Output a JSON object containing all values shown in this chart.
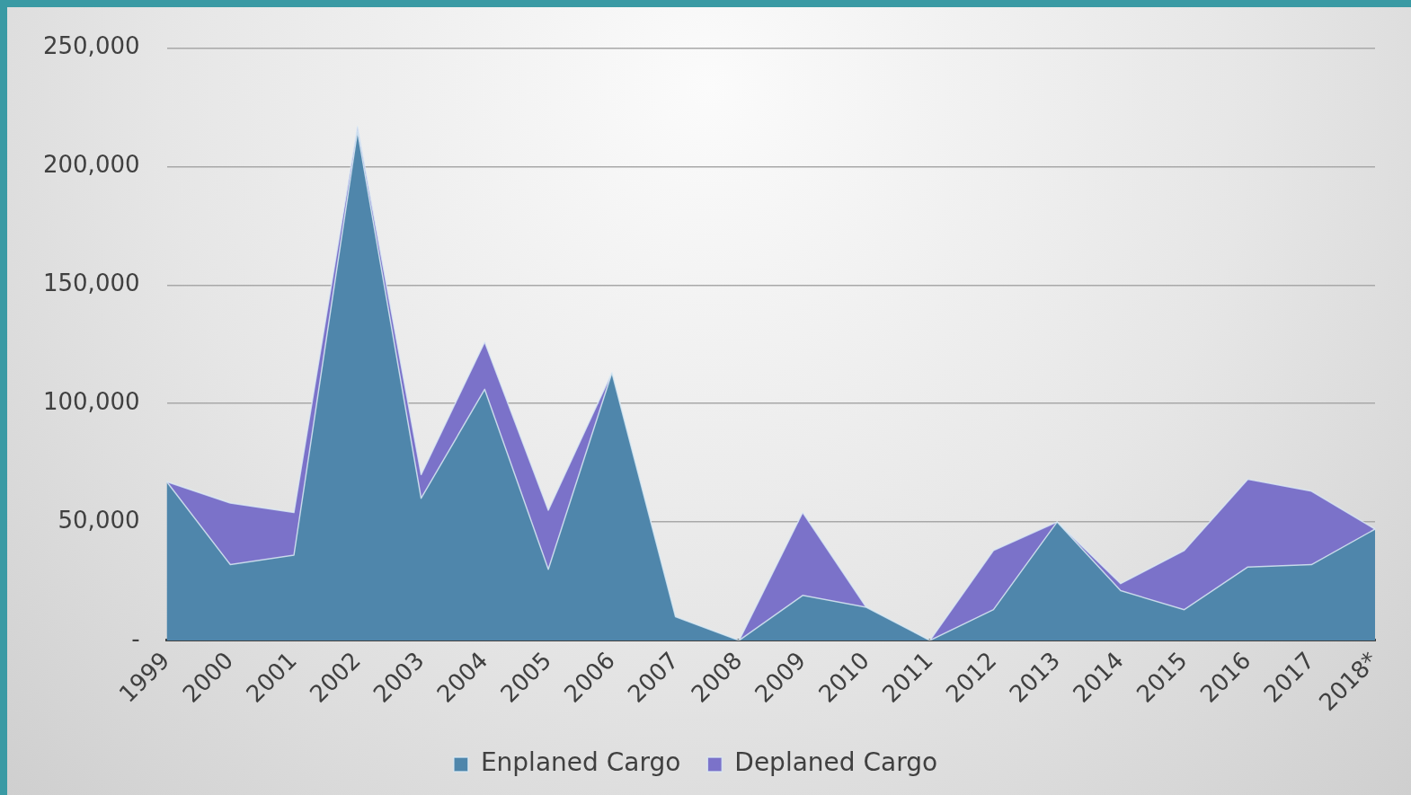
{
  "chart_data": {
    "type": "area",
    "stacked": true,
    "categories": [
      "1999",
      "2000",
      "2001",
      "2002",
      "2003",
      "2004",
      "2005",
      "2006",
      "2007",
      "2008",
      "2009",
      "2010",
      "2011",
      "2012",
      "2013",
      "2014",
      "2015",
      "2016",
      "2017",
      "2018*"
    ],
    "series": [
      {
        "name": "Enplaned Cargo",
        "color": "#4f86ab",
        "values": [
          67000,
          32000,
          36000,
          215000,
          60000,
          106000,
          30000,
          113000,
          10000,
          0,
          19000,
          14000,
          0,
          13000,
          50000,
          21000,
          13000,
          31000,
          32000,
          47000
        ]
      },
      {
        "name": "Deplaned Cargo",
        "color": "#7b72c9",
        "values": [
          0,
          26000,
          18000,
          2000,
          10000,
          20000,
          25000,
          0,
          0,
          0,
          35000,
          0,
          0,
          25000,
          0,
          3000,
          25000,
          37000,
          31000,
          0
        ]
      }
    ],
    "ylim": [
      0,
      250000
    ],
    "yticks": [
      {
        "value": 0,
        "label": "-"
      },
      {
        "value": 50000,
        "label": "50,000"
      },
      {
        "value": 100000,
        "label": "100,000"
      },
      {
        "value": 150000,
        "label": "150,000"
      },
      {
        "value": 200000,
        "label": "200,000"
      },
      {
        "value": 250000,
        "label": "250,000"
      }
    ],
    "grid": "y",
    "legend": "bottom"
  }
}
